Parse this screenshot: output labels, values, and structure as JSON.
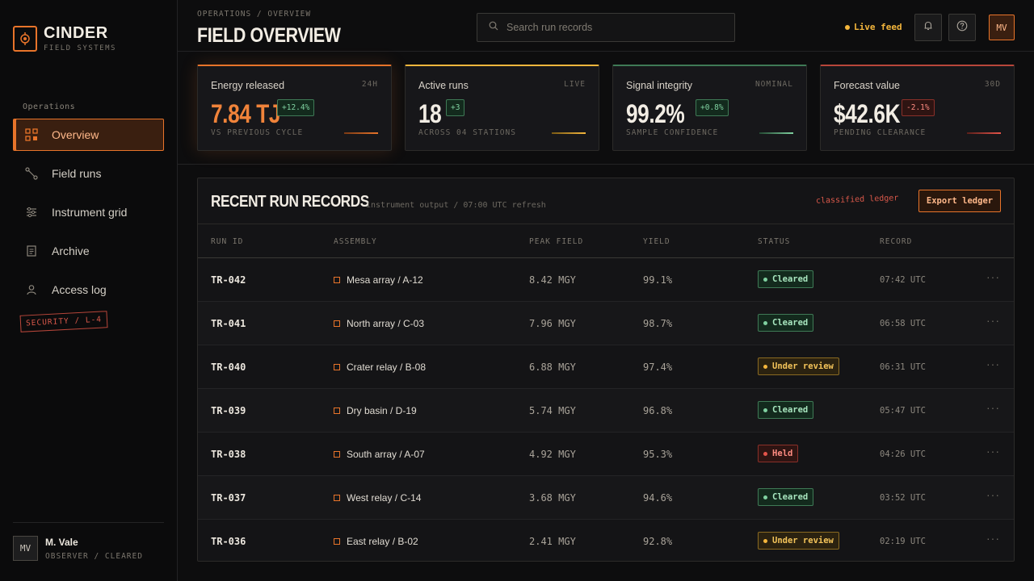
{
  "brand": {
    "name": "CINDER",
    "sub": "FIELD SYSTEMS"
  },
  "nav": {
    "heading": "Operations",
    "items": [
      {
        "label": "Overview",
        "icon": "grid-icon",
        "active": true
      },
      {
        "label": "Field runs",
        "icon": "route-icon"
      },
      {
        "label": "Instrument grid",
        "icon": "sliders-icon"
      },
      {
        "label": "Archive",
        "icon": "document-icon"
      },
      {
        "label": "Access log",
        "icon": "user-icon"
      }
    ],
    "security_stamp": "SECURITY / L-4"
  },
  "user": {
    "initials": "MV",
    "name": "M. Vale",
    "role": "OBSERVER / CLEARED"
  },
  "header": {
    "breadcrumb": "OPERATIONS / OVERVIEW",
    "title": "FIELD OVERVIEW",
    "search_placeholder": "Search run records",
    "live_label": "Live feed",
    "avatar": "MV"
  },
  "colors": {
    "accent": "#e8742a",
    "positive": "#7fd1a0",
    "warning": "#f4b63c",
    "negative": "#e5544a"
  },
  "kpis": [
    {
      "label": "Energy released",
      "tag": "24H",
      "value": "7.84 TJ",
      "delta": "+12.4%",
      "sub": "VS PREVIOUS CYCLE"
    },
    {
      "label": "Active runs",
      "tag": "LIVE",
      "value": "18",
      "delta": "+3",
      "sub": "ACROSS 04 STATIONS"
    },
    {
      "label": "Signal integrity",
      "tag": "NOMINAL",
      "value": "99.2%",
      "delta": "+0.8%",
      "sub": "SAMPLE CONFIDENCE"
    },
    {
      "label": "Forecast value",
      "tag": "30D",
      "value": "$42.6K",
      "delta": "-2.1%",
      "sub": "PENDING CLEARANCE"
    }
  ],
  "table": {
    "title": "RECENT RUN RECORDS",
    "subtitle": "instrument output / 07:00 UTC refresh",
    "stamp": "classified ledger",
    "export_label": "Export ledger",
    "columns": [
      "RUN ID",
      "ASSEMBLY",
      "PEAK FIELD",
      "YIELD",
      "STATUS",
      "RECORD"
    ],
    "rows": [
      {
        "id": "TR-042",
        "assembly": "Mesa array / A-12",
        "peak": "8.42 MGY",
        "yield": "99.1%",
        "status": "Cleared",
        "record": "07:42 UTC"
      },
      {
        "id": "TR-041",
        "assembly": "North array / C-03",
        "peak": "7.96 MGY",
        "yield": "98.7%",
        "status": "Cleared",
        "record": "06:58 UTC"
      },
      {
        "id": "TR-040",
        "assembly": "Crater relay / B-08",
        "peak": "6.88 MGY",
        "yield": "97.4%",
        "status": "Under review",
        "record": "06:31 UTC"
      },
      {
        "id": "TR-039",
        "assembly": "Dry basin / D-19",
        "peak": "5.74 MGY",
        "yield": "96.8%",
        "status": "Cleared",
        "record": "05:47 UTC"
      },
      {
        "id": "TR-038",
        "assembly": "South array / A-07",
        "peak": "4.92 MGY",
        "yield": "95.3%",
        "status": "Held",
        "record": "04:26 UTC"
      },
      {
        "id": "TR-037",
        "assembly": "West relay / C-14",
        "peak": "3.68 MGY",
        "yield": "94.6%",
        "status": "Cleared",
        "record": "03:52 UTC"
      },
      {
        "id": "TR-036",
        "assembly": "East relay / B-02",
        "peak": "2.41 MGY",
        "yield": "92.8%",
        "status": "Under review",
        "record": "02:19 UTC"
      }
    ],
    "more_glyph": "···"
  }
}
